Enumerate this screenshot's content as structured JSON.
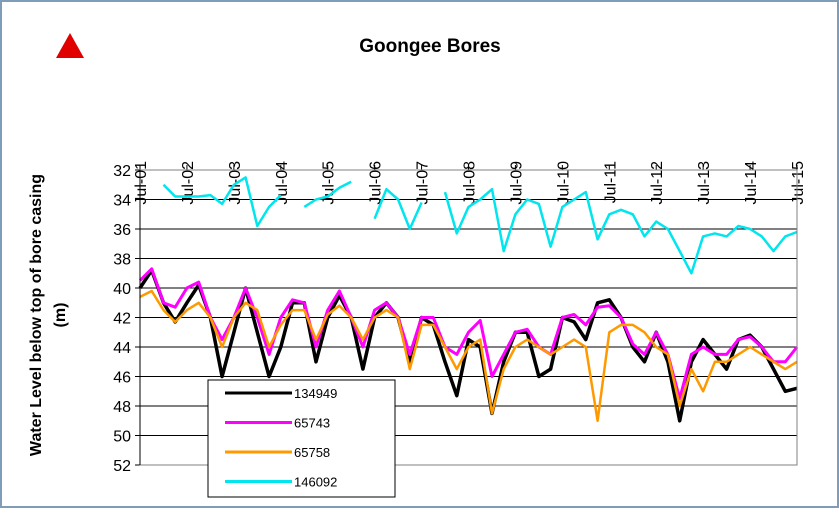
{
  "chart_data": {
    "type": "line",
    "title": "Goongee Bores",
    "y_label": [
      "Water Level below top of bore casing",
      "(m)"
    ],
    "x": [
      "2001-07",
      "2001-10",
      "2002-01",
      "2002-04",
      "2002-07",
      "2002-10",
      "2003-01",
      "2003-04",
      "2003-07",
      "2003-10",
      "2004-01",
      "2004-04",
      "2004-07",
      "2004-10",
      "2005-01",
      "2005-04",
      "2005-07",
      "2005-10",
      "2006-01",
      "2006-04",
      "2006-07",
      "2006-10",
      "2007-01",
      "2007-04",
      "2007-07",
      "2007-10",
      "2008-01",
      "2008-04",
      "2008-07",
      "2008-10",
      "2009-01",
      "2009-04",
      "2009-07",
      "2009-10",
      "2010-01",
      "2010-04",
      "2010-07",
      "2010-10",
      "2011-01",
      "2011-04",
      "2011-07",
      "2011-10",
      "2012-01",
      "2012-04",
      "2012-07",
      "2012-10",
      "2013-01",
      "2013-04",
      "2013-07",
      "2013-10",
      "2014-01",
      "2014-04",
      "2014-07",
      "2014-10",
      "2015-01",
      "2015-04",
      "2015-07"
    ],
    "xlim": [
      "2001-07",
      "2015-07"
    ],
    "xticks": [
      {
        "value": "2001-07",
        "label": "Jul-01"
      },
      {
        "value": "2002-07",
        "label": "Jul-02"
      },
      {
        "value": "2003-07",
        "label": "Jul-03"
      },
      {
        "value": "2004-07",
        "label": "Jul-04"
      },
      {
        "value": "2005-07",
        "label": "Jul-05"
      },
      {
        "value": "2006-07",
        "label": "Jul-06"
      },
      {
        "value": "2007-07",
        "label": "Jul-07"
      },
      {
        "value": "2008-07",
        "label": "Jul-08"
      },
      {
        "value": "2009-07",
        "label": "Jul-09"
      },
      {
        "value": "2010-07",
        "label": "Jul-10"
      },
      {
        "value": "2011-07",
        "label": "Jul-11"
      },
      {
        "value": "2012-07",
        "label": "Jul-12"
      },
      {
        "value": "2013-07",
        "label": "Jul-13"
      },
      {
        "value": "2014-07",
        "label": "Jul-14"
      },
      {
        "value": "2015-07",
        "label": "Jul-15"
      }
    ],
    "ylim": [
      32,
      52
    ],
    "y_inverted": true,
    "yticks": [
      32,
      34,
      36,
      38,
      40,
      42,
      44,
      46,
      48,
      50,
      52
    ],
    "grid": true,
    "legend": "lower left",
    "series": [
      {
        "name": "134949",
        "color": "#000000",
        "width": 3.5,
        "values": [
          40,
          38.8,
          41,
          42.3,
          41,
          39.8,
          42,
          46,
          43,
          40,
          43,
          46,
          44,
          41,
          41,
          45,
          42,
          40.5,
          42,
          45.5,
          42,
          41,
          42,
          45,
          42,
          42.5,
          45,
          47.3,
          43.5,
          44,
          48.5,
          45,
          43,
          43,
          46,
          45.5,
          42,
          42.3,
          43.5,
          41,
          40.8,
          42,
          44,
          45,
          43,
          45,
          49,
          45,
          43.5,
          44.5,
          45.5,
          43.5,
          43.2,
          44,
          45.5,
          47,
          46.8
        ]
      },
      {
        "name": "65743",
        "color": "#ff00ff",
        "width": 3,
        "values": [
          39.5,
          38.7,
          41,
          41.3,
          40,
          39.6,
          42,
          43.5,
          42,
          40,
          42,
          44.5,
          42,
          40.8,
          41,
          44,
          41.5,
          40.2,
          42,
          44,
          41.5,
          41,
          42,
          44.5,
          42,
          42,
          44,
          44.5,
          43,
          42.2,
          46,
          44.5,
          43,
          42.8,
          44,
          44.5,
          42,
          41.8,
          42.5,
          41.3,
          41.2,
          42,
          43.8,
          44.5,
          43,
          44.5,
          47.5,
          44.5,
          44,
          44.5,
          44.5,
          43.5,
          43.3,
          44,
          45,
          45,
          44
        ]
      },
      {
        "name": "65758",
        "color": "#ff9900",
        "width": 2.5,
        "values": [
          40.6,
          40.2,
          41.5,
          42.3,
          41.5,
          41,
          42,
          44,
          42,
          41,
          41.5,
          44,
          42.5,
          41.5,
          41.5,
          43.5,
          41.8,
          41.2,
          42,
          43.5,
          42,
          41.5,
          42,
          45.5,
          42.5,
          42.5,
          44,
          45.5,
          44,
          43.5,
          48.5,
          45.5,
          44,
          43.5,
          44,
          44.5,
          44,
          43.5,
          44,
          49,
          43,
          42.5,
          42.5,
          43,
          44,
          44.5,
          48,
          45.5,
          47,
          45,
          45,
          44.5,
          44,
          44.5,
          45,
          45.5,
          45
        ]
      },
      {
        "name": "146092",
        "color": "#00e5ee",
        "width": 2.5,
        "values": [
          null,
          null,
          33,
          33.8,
          33.8,
          33.8,
          33.7,
          34.3,
          33,
          32.5,
          35.8,
          34.5,
          33.7,
          null,
          34.5,
          34,
          33.8,
          33.2,
          32.8,
          null,
          35.3,
          33.3,
          34,
          36,
          34.2,
          null,
          33.5,
          36.3,
          34.5,
          34,
          33.3,
          37.5,
          35,
          34,
          34.3,
          37.2,
          34.5,
          34,
          33.5,
          36.7,
          35,
          34.7,
          35,
          36.5,
          35.5,
          36,
          37.5,
          39,
          36.5,
          36.3,
          36.5,
          35.8,
          36,
          36.5,
          37.5,
          36.5,
          36.2
        ]
      }
    ]
  }
}
